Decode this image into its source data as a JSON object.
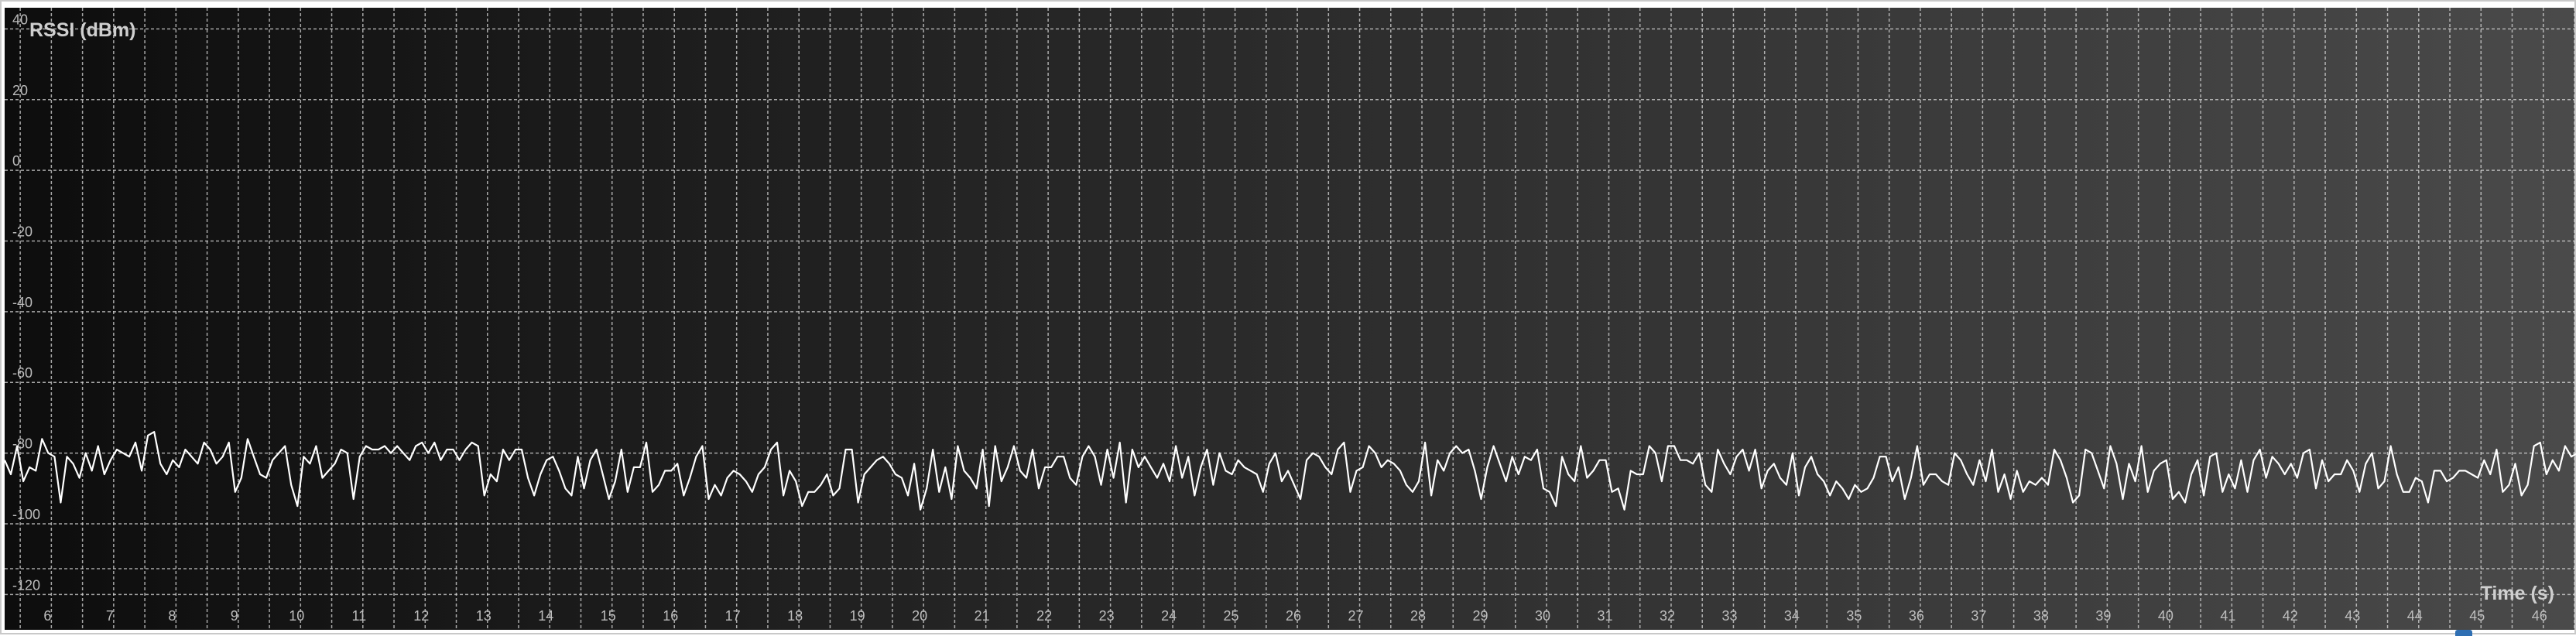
{
  "chart_data": {
    "type": "line",
    "title": "RSSI (dBm)",
    "xlabel": "Time (s)",
    "ylabel": "RSSI (dBm)",
    "xlim": [
      5.25,
      46.5
    ],
    "ylim": [
      -130,
      46
    ],
    "x_ticks": [
      "6",
      "7",
      "8",
      "9",
      "10",
      "11",
      "12",
      "13",
      "14",
      "15",
      "16",
      "17",
      "18",
      "19",
      "20",
      "21",
      "22",
      "23",
      "24",
      "25",
      "26",
      "27",
      "28",
      "29",
      "30",
      "31",
      "32",
      "33",
      "34",
      "35",
      "36",
      "37",
      "38",
      "39",
      "40",
      "41",
      "42",
      "43",
      "44",
      "45",
      "46"
    ],
    "y_ticks": [
      "40",
      "20",
      "0",
      "-20",
      "-40",
      "-60",
      "-80",
      "-100",
      "-120"
    ],
    "grid": true,
    "background": {
      "left": "#0d0d0d",
      "right": "#4a4a4a"
    },
    "line_color": "#ffffff",
    "series": [
      {
        "sample_interval_s": 0.1,
        "x_start": 5.25,
        "values": [
          -82,
          -86,
          -78,
          -88,
          -84,
          -85,
          -76,
          -80,
          -81,
          -94,
          -81,
          -83,
          -87,
          -80,
          -85,
          -78,
          -86,
          -82,
          -79,
          -80,
          -81,
          -77,
          -85,
          -75,
          -74,
          -83,
          -86,
          -82,
          -84,
          -79,
          -81,
          -83,
          -77,
          -79,
          -83,
          -81,
          -77,
          -91,
          -87,
          -76,
          -81,
          -86,
          -87,
          -82,
          -80,
          -78,
          -89,
          -95,
          -81,
          -83,
          -78,
          -87,
          -85,
          -83,
          -79,
          -80,
          -93,
          -81,
          -78,
          -79,
          -79,
          -78,
          -80,
          -78,
          -80,
          -82,
          -78,
          -77,
          -80,
          -77,
          -82,
          -79,
          -79,
          -82,
          -79,
          -77,
          -78,
          -92,
          -86,
          -88,
          -79,
          -82,
          -79,
          -79,
          -87,
          -92,
          -86,
          -82,
          -81,
          -85,
          -90,
          -92,
          -81,
          -90,
          -82,
          -79,
          -86,
          -93,
          -88,
          -79,
          -91,
          -84,
          -84,
          -77,
          -91,
          -89,
          -85,
          -85,
          -83,
          -92,
          -87,
          -81,
          -78,
          -93,
          -89,
          -92,
          -87,
          -85,
          -86,
          -88,
          -91,
          -86,
          -84,
          -79,
          -77,
          -92,
          -85,
          -88,
          -95,
          -91,
          -91,
          -89,
          -86,
          -92,
          -90,
          -79,
          -79,
          -94,
          -86,
          -84,
          -82,
          -81,
          -83,
          -86,
          -87,
          -92,
          -83,
          -96,
          -90,
          -79,
          -91,
          -84,
          -93,
          -78,
          -85,
          -87,
          -90,
          -79,
          -95,
          -78,
          -88,
          -84,
          -78,
          -85,
          -87,
          -79,
          -90,
          -84,
          -84,
          -81,
          -81,
          -87,
          -89,
          -81,
          -78,
          -81,
          -89,
          -79,
          -87,
          -77,
          -94,
          -79,
          -84,
          -81,
          -84,
          -87,
          -83,
          -88,
          -78,
          -87,
          -81,
          -92,
          -84,
          -79,
          -89,
          -80,
          -85,
          -86,
          -82,
          -84,
          -85,
          -86,
          -91,
          -83,
          -80,
          -88,
          -85,
          -89,
          -93,
          -82,
          -80,
          -81,
          -84,
          -86,
          -79,
          -77,
          -91,
          -85,
          -84,
          -78,
          -80,
          -84,
          -82,
          -83,
          -85,
          -89,
          -91,
          -88,
          -77,
          -92,
          -82,
          -85,
          -80,
          -78,
          -80,
          -79,
          -85,
          -93,
          -84,
          -78,
          -83,
          -88,
          -81,
          -86,
          -81,
          -82,
          -79,
          -90,
          -91,
          -95,
          -81,
          -86,
          -88,
          -78,
          -87,
          -85,
          -82,
          -82,
          -91,
          -90,
          -96,
          -85,
          -86,
          -86,
          -78,
          -80,
          -88,
          -78,
          -78,
          -82,
          -82,
          -83,
          -80,
          -89,
          -91,
          -79,
          -83,
          -86,
          -81,
          -79,
          -85,
          -79,
          -90,
          -85,
          -83,
          -87,
          -89,
          -80,
          -92,
          -84,
          -81,
          -86,
          -88,
          -92,
          -88,
          -90,
          -93,
          -89,
          -91,
          -90,
          -87,
          -81,
          -81,
          -88,
          -84,
          -93,
          -87,
          -78,
          -89,
          -86,
          -86,
          -88,
          -89,
          -80,
          -82,
          -86,
          -89,
          -82,
          -88,
          -79,
          -91,
          -86,
          -93,
          -85,
          -91,
          -88,
          -89,
          -87,
          -89,
          -79,
          -82,
          -87,
          -94,
          -92,
          -79,
          -80,
          -85,
          -90,
          -78,
          -83,
          -93,
          -83,
          -88,
          -78,
          -91,
          -85,
          -83,
          -82,
          -93,
          -91,
          -94,
          -86,
          -82,
          -92,
          -81,
          -80,
          -91,
          -86,
          -90,
          -82,
          -91,
          -82,
          -79,
          -87,
          -81,
          -83,
          -86,
          -83,
          -87,
          -80,
          -79,
          -90,
          -82,
          -88,
          -86,
          -86,
          -82,
          -85,
          -91,
          -83,
          -80,
          -90,
          -88,
          -78,
          -86,
          -91,
          -91,
          -87,
          -88,
          -94,
          -85,
          -85,
          -88,
          -87,
          -85,
          -85,
          -86,
          -87,
          -82,
          -86,
          -79,
          -91,
          -89,
          -83,
          -92,
          -89,
          -78,
          -77,
          -86,
          -82,
          -85,
          -78,
          -81,
          -80,
          -88,
          -91,
          -80,
          -82,
          -79,
          -84,
          -91,
          -79,
          -87,
          -78,
          -87,
          -80,
          -84,
          -86,
          -82,
          -91,
          -83,
          -86,
          -80,
          -77,
          -89,
          -84,
          -88,
          -81,
          -80,
          -87,
          -89,
          -93,
          -91,
          -84,
          -84,
          -80,
          -79,
          -82,
          -89,
          -84,
          -81,
          -90,
          -82,
          -78,
          -82,
          -79,
          -94,
          -84
        ]
      }
    ]
  }
}
